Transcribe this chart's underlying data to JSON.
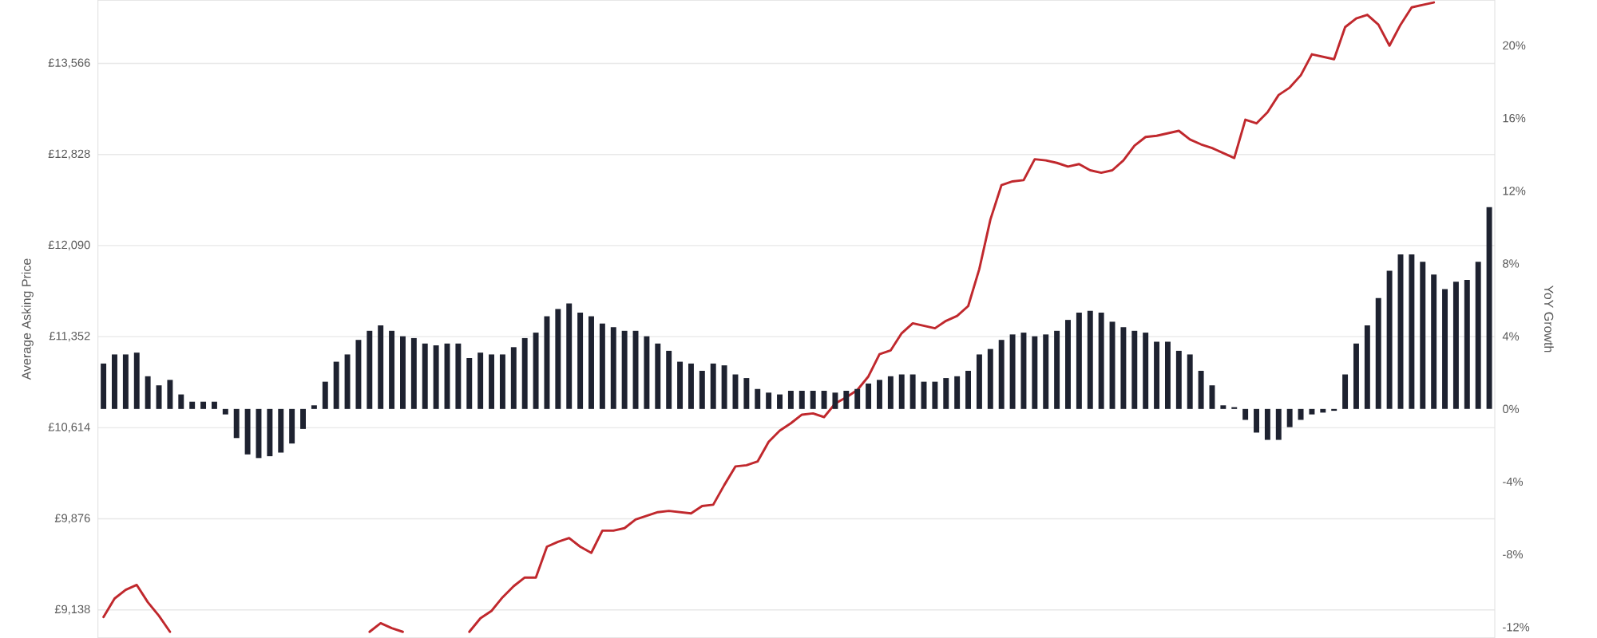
{
  "chart_data": {
    "type": "bar",
    "categories": [
      null,
      null,
      null,
      null,
      null,
      null,
      null,
      null,
      null,
      null,
      null,
      null,
      null,
      null,
      null,
      null,
      null,
      null,
      null,
      null,
      null,
      null,
      null,
      null,
      null,
      null,
      null,
      null,
      null,
      null,
      null,
      null,
      null,
      null,
      null,
      null,
      null,
      null,
      null,
      null,
      null,
      null,
      null,
      null,
      null,
      null,
      null,
      null,
      null,
      null,
      null,
      null,
      null,
      null,
      null,
      null,
      null,
      null,
      null,
      null,
      null,
      null,
      null,
      null,
      null,
      null,
      null,
      null,
      null,
      null,
      null,
      null,
      null,
      null,
      null,
      null,
      null,
      null,
      null,
      null,
      null,
      null,
      null,
      null,
      null,
      null,
      null,
      null,
      null,
      null,
      null,
      null,
      null,
      null,
      null,
      null,
      null,
      null,
      null,
      null,
      null,
      null,
      null,
      null,
      null,
      null,
      null,
      null,
      null,
      null,
      null,
      null,
      null,
      null,
      null,
      null,
      null,
      null,
      null,
      null,
      null,
      null,
      null,
      null,
      null,
      null
    ],
    "series": [
      {
        "axis": "y2",
        "color": "#1e2230",
        "values": [
          2.5,
          3.0,
          3.0,
          3.1,
          1.8,
          1.3,
          1.6,
          0.8,
          0.4,
          0.4,
          0.4,
          -0.3,
          -1.6,
          -2.5,
          -2.7,
          -2.6,
          -2.4,
          -1.9,
          -1.1,
          0.2,
          1.5,
          2.6,
          3.0,
          3.8,
          4.3,
          4.6,
          4.3,
          4.0,
          3.9,
          3.6,
          3.5,
          3.6,
          3.6,
          2.8,
          3.1,
          3.0,
          3.0,
          3.4,
          3.9,
          4.2,
          5.1,
          5.5,
          5.8,
          5.3,
          5.1,
          4.7,
          4.5,
          4.3,
          4.3,
          4.0,
          3.6,
          3.2,
          2.6,
          2.5,
          2.1,
          2.5,
          2.4,
          1.9,
          1.7,
          1.1,
          0.9,
          0.8,
          1.0,
          1.0,
          1.0,
          1.0,
          0.9,
          1.0,
          1.1,
          1.4,
          1.6,
          1.8,
          1.9,
          1.9,
          1.5,
          1.5,
          1.7,
          1.8,
          2.1,
          3.0,
          3.3,
          3.8,
          4.1,
          4.2,
          4.0,
          4.1,
          4.3,
          4.9,
          5.3,
          5.4,
          5.3,
          4.8,
          4.5,
          4.3,
          4.2,
          3.7,
          3.7,
          3.2,
          3.0,
          2.1,
          1.3,
          0.2,
          0.1,
          -0.6,
          -1.3,
          -1.7,
          -1.7,
          -1.0,
          -0.6,
          -0.3,
          -0.2,
          -0.1,
          1.9,
          3.6,
          4.6,
          6.1,
          7.6,
          8.5,
          8.5,
          8.1,
          7.4,
          6.6,
          7.0,
          7.1,
          8.1,
          11.1
        ]
      },
      {
        "type": "line",
        "axis": "y",
        "color": "#c0282d",
        "values": [
          9080,
          9230,
          9300,
          9340,
          9200,
          9090,
          8960,
          null,
          null,
          null,
          null,
          null,
          null,
          null,
          null,
          null,
          null,
          null,
          null,
          null,
          null,
          null,
          null,
          null,
          null,
          null,
          null,
          null,
          null,
          null,
          null,
          null,
          null,
          null,
          null,
          null,
          null,
          null,
          null,
          null,
          null,
          null,
          null,
          null,
          null,
          null,
          null,
          null,
          null,
          null,
          null,
          null,
          null,
          null,
          null,
          null,
          null,
          null,
          null,
          null,
          null,
          null,
          null,
          null,
          null,
          null,
          null,
          null,
          null,
          null,
          null,
          null,
          null,
          null,
          null,
          null,
          null,
          null,
          null,
          null,
          null,
          null,
          null,
          null,
          null,
          null,
          null,
          null,
          null,
          null,
          null,
          null,
          null,
          null,
          null,
          null,
          null,
          null,
          null,
          null,
          null,
          null,
          null,
          null,
          null,
          null,
          null,
          null,
          null,
          null,
          null,
          null,
          null,
          null,
          null,
          null,
          null,
          null,
          null,
          null,
          null,
          null,
          null,
          null,
          null,
          null
        ]
      },
      {
        "type": "line",
        "axis": "y",
        "color": "#c0282d",
        "values": [
          null,
          null,
          null,
          null,
          null,
          null,
          null,
          null,
          null,
          null,
          null,
          null,
          null,
          null,
          null,
          null,
          null,
          null,
          null,
          null,
          null,
          null,
          null,
          null,
          8960,
          9030,
          8990,
          8960,
          null,
          null,
          null,
          null,
          null,
          null,
          null,
          null,
          null,
          null,
          null,
          null,
          null,
          null,
          null,
          null,
          null,
          null,
          null,
          null,
          null,
          null,
          null,
          null,
          null,
          null,
          null,
          null,
          null,
          null,
          null,
          null,
          null,
          null,
          null,
          null,
          null,
          null,
          null,
          null,
          null,
          null,
          null,
          null,
          null,
          null,
          null,
          null,
          null,
          null,
          null,
          null,
          null,
          null,
          null,
          null,
          null,
          null,
          null,
          null,
          null,
          null,
          null,
          null,
          null,
          null,
          null,
          null,
          null,
          null,
          null,
          null,
          null,
          null,
          null,
          null,
          null,
          null,
          null,
          null,
          null,
          null,
          null,
          null,
          null,
          null,
          null,
          null,
          null,
          null,
          null,
          null,
          null,
          null,
          null,
          null,
          null,
          null
        ]
      },
      {
        "type": "line",
        "axis": "y",
        "color": "#c0282d",
        "values": [
          null,
          null,
          null,
          null,
          null,
          null,
          null,
          null,
          null,
          null,
          null,
          null,
          null,
          null,
          null,
          null,
          null,
          null,
          null,
          null,
          null,
          null,
          null,
          null,
          null,
          null,
          null,
          null,
          null,
          null,
          null,
          null,
          null,
          8960,
          9070,
          9130,
          9240,
          9330,
          9400,
          9400,
          9650,
          9690,
          9720,
          9650,
          9600,
          9780,
          9780,
          9800,
          9870,
          9900,
          9930,
          9940,
          9930,
          9920,
          9980,
          9990,
          10150,
          10300,
          10310,
          10340,
          10500,
          10590,
          10650,
          10720,
          10730,
          10700,
          10810,
          10860,
          10920,
          11030,
          11210,
          11240,
          11380,
          11460,
          11440,
          11420,
          11480,
          11520,
          11600,
          11900,
          12300,
          12580,
          12610,
          12620,
          12790,
          12780,
          12760,
          12730,
          12750,
          12700,
          12680,
          12700,
          12780,
          12900,
          12970,
          12980,
          13000,
          13020,
          12950,
          12910,
          12880,
          12840,
          12800,
          13110,
          13080,
          13170,
          13310,
          13370,
          13470,
          13640,
          13620,
          13600,
          13860,
          13930,
          13960,
          13880,
          13710,
          13880,
          14020,
          14040,
          14060,
          null,
          null,
          null,
          null,
          null
        ]
      }
    ],
    "ylabel": "Average Asking Price",
    "y2label": "YoY Growth",
    "ylim": [
      8910,
      14080
    ],
    "yticks": [
      {
        "value": 9138,
        "label": "£9,138"
      },
      {
        "value": 9876,
        "label": "£9,876"
      },
      {
        "value": 10614,
        "label": "£10,614"
      },
      {
        "value": 11352,
        "label": "£11,352"
      },
      {
        "value": 12090,
        "label": "£12,090"
      },
      {
        "value": 12828,
        "label": "£12,828"
      },
      {
        "value": 13566,
        "label": "£13,566"
      }
    ],
    "y2lim": [
      -12.6,
      22.5
    ],
    "y2ticks": [
      {
        "value": -12,
        "label": "-12%"
      },
      {
        "value": -8,
        "label": "-8%"
      },
      {
        "value": -4,
        "label": "-4%"
      },
      {
        "value": 0,
        "label": "0%"
      },
      {
        "value": 4,
        "label": "4%"
      },
      {
        "value": 8,
        "label": "8%"
      },
      {
        "value": 12,
        "label": "12%"
      },
      {
        "value": 16,
        "label": "16%"
      },
      {
        "value": 20,
        "label": "20%"
      }
    ],
    "grid": "y"
  }
}
